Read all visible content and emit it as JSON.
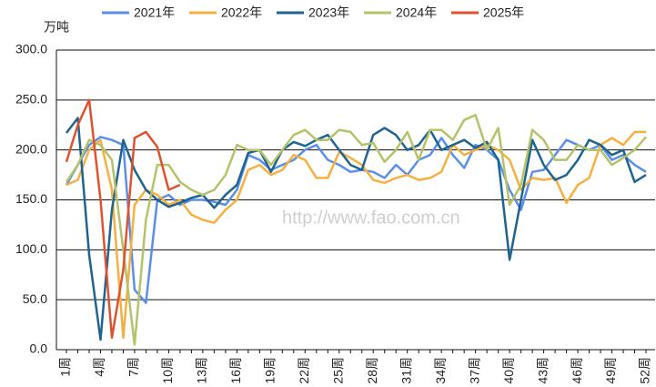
{
  "chart_data": {
    "type": "line",
    "y_label": "万吨",
    "watermark": "http://www.fao.com.cn",
    "categories": [
      "1周",
      null,
      null,
      "4周",
      null,
      null,
      "7周",
      null,
      null,
      "10周",
      null,
      null,
      "13周",
      null,
      null,
      "16周",
      null,
      null,
      "19周",
      null,
      null,
      "22周",
      null,
      null,
      "25周",
      null,
      null,
      "28周",
      null,
      null,
      "31周",
      null,
      null,
      "34周",
      null,
      null,
      "37周",
      null,
      null,
      "40周",
      null,
      null,
      "43周",
      null,
      null,
      "46周",
      null,
      null,
      "49周",
      null,
      null,
      "52周"
    ],
    "ylim": [
      0,
      300
    ],
    "yticks": [
      {
        "value": 0,
        "label": "0.0"
      },
      {
        "value": 50,
        "label": "50.0"
      },
      {
        "value": 100,
        "label": "100.0"
      },
      {
        "value": 150,
        "label": "150.0"
      },
      {
        "value": 200,
        "label": "200.0"
      },
      {
        "value": 250,
        "label": "250.0"
      },
      {
        "value": 300,
        "label": "300.0"
      }
    ],
    "grid": true,
    "legend": "top",
    "series": [
      {
        "name": "2021年",
        "color": "#5b8fea",
        "values": [
          165,
          185,
          205,
          213,
          210,
          205,
          60,
          47,
          150,
          155,
          145,
          150,
          150,
          148,
          145,
          160,
          195,
          190,
          180,
          185,
          190,
          200,
          205,
          190,
          185,
          178,
          180,
          178,
          172,
          185,
          175,
          190,
          195,
          212,
          195,
          182,
          205,
          200,
          190,
          160,
          140,
          178,
          180,
          195,
          210,
          205,
          200,
          205,
          190,
          195,
          185,
          178
        ]
      },
      {
        "name": "2022年",
        "color": "#f5b041",
        "values": [
          165,
          170,
          200,
          210,
          160,
          12,
          145,
          160,
          155,
          145,
          150,
          135,
          130,
          127,
          140,
          150,
          180,
          185,
          175,
          180,
          195,
          190,
          172,
          172,
          198,
          192,
          185,
          170,
          167,
          172,
          175,
          170,
          172,
          178,
          205,
          195,
          200,
          205,
          200,
          190,
          160,
          172,
          170,
          172,
          147,
          165,
          172,
          205,
          212,
          205,
          218,
          218
        ]
      },
      {
        "name": "2023年",
        "color": "#1f6391",
        "values": [
          217,
          232,
          95,
          10,
          140,
          210,
          180,
          160,
          150,
          143,
          147,
          152,
          155,
          142,
          155,
          165,
          197,
          200,
          178,
          200,
          208,
          204,
          210,
          215,
          200,
          185,
          180,
          215,
          222,
          215,
          200,
          205,
          220,
          200,
          205,
          210,
          202,
          208,
          190,
          90,
          150,
          210,
          185,
          170,
          175,
          190,
          210,
          205,
          195,
          200,
          168,
          175
        ]
      },
      {
        "name": "2024年",
        "color": "#b5c26a",
        "values": [
          168,
          185,
          210,
          205,
          190,
          100,
          5,
          130,
          185,
          185,
          168,
          160,
          155,
          160,
          175,
          205,
          200,
          200,
          185,
          200,
          215,
          220,
          210,
          210,
          220,
          218,
          205,
          207,
          188,
          200,
          218,
          190,
          220,
          220,
          210,
          230,
          235,
          200,
          222,
          145,
          165,
          220,
          210,
          190,
          190,
          205,
          200,
          200,
          185,
          192,
          200,
          213
        ]
      },
      {
        "name": "2025年",
        "color": "#e0522e",
        "values": [
          188,
          225,
          250,
          150,
          12,
          80,
          212,
          218,
          203,
          160,
          165,
          null,
          null,
          null,
          null,
          null,
          null,
          null,
          null,
          null,
          null,
          null,
          null,
          null,
          null,
          null,
          null,
          null,
          null,
          null,
          null,
          null,
          null,
          null,
          null,
          null,
          null,
          null,
          null,
          null,
          null,
          null,
          null,
          null,
          null,
          null,
          null,
          null,
          null,
          null,
          null,
          null
        ]
      }
    ]
  }
}
